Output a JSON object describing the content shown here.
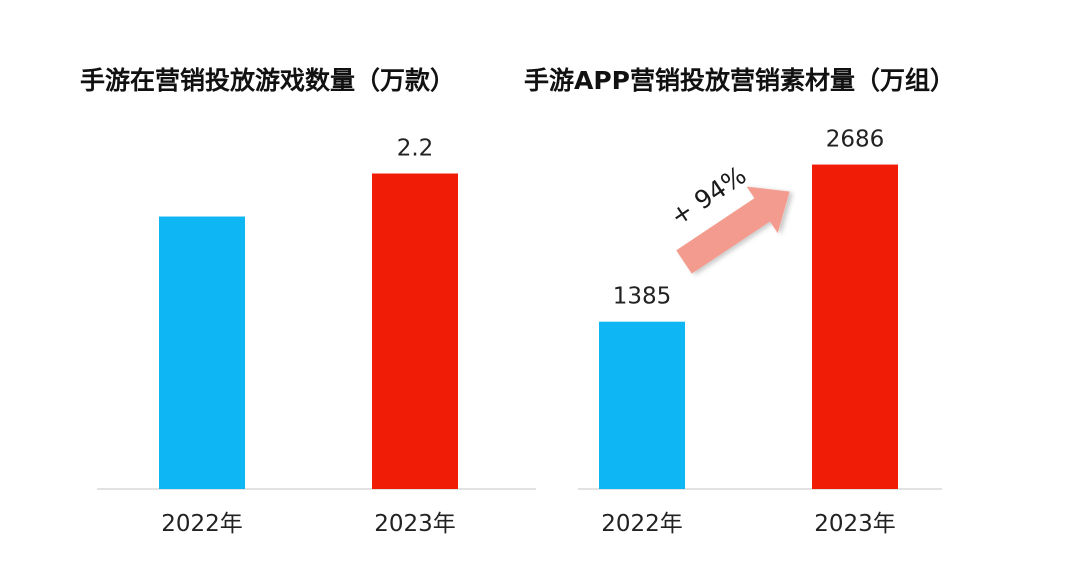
{
  "chart_data": [
    {
      "type": "bar",
      "title": "手游在营销投放游戏数量（万款）",
      "categories": [
        "2022年",
        "2023年"
      ],
      "values": [
        1.9,
        2.2
      ],
      "value_labels": [
        "",
        "2.2"
      ],
      "ylim": [
        0,
        2.35
      ],
      "colors": [
        "#0eb6f4",
        "#f01c05"
      ],
      "grid": false
    },
    {
      "type": "bar",
      "title": "手游APP营销投放营销素材量（万组）",
      "categories": [
        "2022年",
        "2023年"
      ],
      "values": [
        1385,
        2686
      ],
      "value_labels": [
        "1385",
        "2686"
      ],
      "ylim": [
        0,
        2790
      ],
      "colors": [
        "#0eb6f4",
        "#f01c05"
      ],
      "grid": false,
      "annotation": {
        "text": "+ 94%",
        "arrow_color": "#f39b8e"
      }
    }
  ]
}
